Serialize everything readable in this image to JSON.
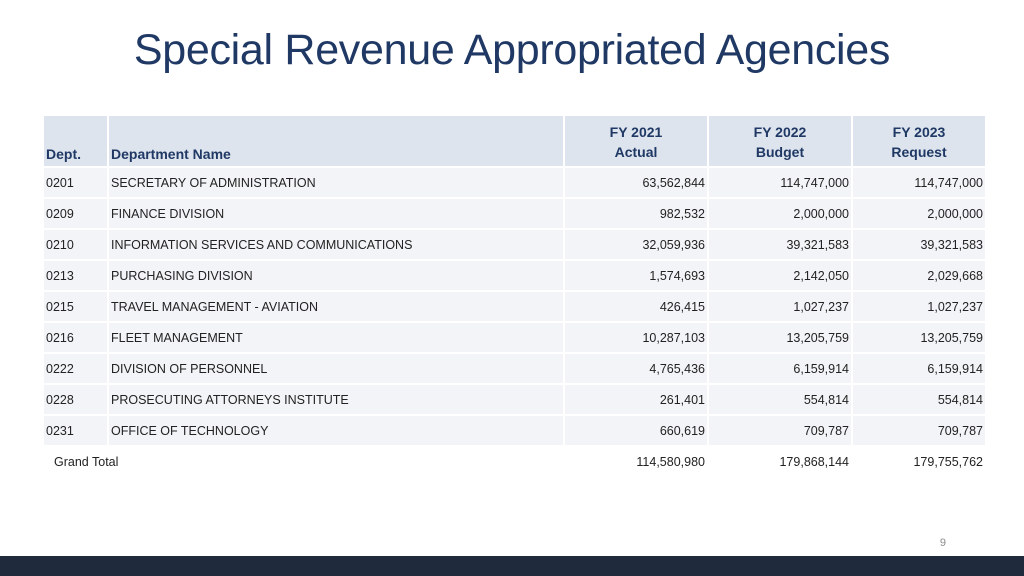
{
  "title": "Special Revenue Appropriated Agencies",
  "table": {
    "headers": {
      "dept": "Dept.",
      "name": "Department Name",
      "fy2021": {
        "line1": "FY 2021",
        "line2": "Actual"
      },
      "fy2022": {
        "line1": "FY 2022",
        "line2": "Budget"
      },
      "fy2023": {
        "line1": "FY 2023",
        "line2": "Request"
      }
    },
    "rows": [
      {
        "dept": "0201",
        "name": "SECRETARY OF ADMINISTRATION",
        "fy2021": "63,562,844",
        "fy2022": "114,747,000",
        "fy2023": "114,747,000"
      },
      {
        "dept": "0209",
        "name": "FINANCE DIVISION",
        "fy2021": "982,532",
        "fy2022": "2,000,000",
        "fy2023": "2,000,000"
      },
      {
        "dept": "0210",
        "name": "INFORMATION SERVICES AND COMMUNICATIONS",
        "fy2021": "32,059,936",
        "fy2022": "39,321,583",
        "fy2023": "39,321,583"
      },
      {
        "dept": "0213",
        "name": "PURCHASING DIVISION",
        "fy2021": "1,574,693",
        "fy2022": "2,142,050",
        "fy2023": "2,029,668"
      },
      {
        "dept": "0215",
        "name": "TRAVEL MANAGEMENT - AVIATION",
        "fy2021": "426,415",
        "fy2022": "1,027,237",
        "fy2023": "1,027,237"
      },
      {
        "dept": "0216",
        "name": "FLEET MANAGEMENT",
        "fy2021": "10,287,103",
        "fy2022": "13,205,759",
        "fy2023": "13,205,759"
      },
      {
        "dept": "0222",
        "name": "DIVISION OF PERSONNEL",
        "fy2021": "4,765,436",
        "fy2022": "6,159,914",
        "fy2023": "6,159,914"
      },
      {
        "dept": "0228",
        "name": "PROSECUTING ATTORNEYS INSTITUTE",
        "fy2021": "261,401",
        "fy2022": "554,814",
        "fy2023": "554,814"
      },
      {
        "dept": "0231",
        "name": "OFFICE OF TECHNOLOGY",
        "fy2021": "660,619",
        "fy2022": "709,787",
        "fy2023": "709,787"
      }
    ],
    "total": {
      "label": "Grand Total",
      "fy2021": "114,580,980",
      "fy2022": "179,868,144",
      "fy2023": "179,755,762"
    }
  },
  "page_number": "9",
  "colors": {
    "title": "#1f3864",
    "header_bg": "#dde4ee",
    "row_bg": "#f3f4f7",
    "footer_bar": "#1f2a3d"
  }
}
